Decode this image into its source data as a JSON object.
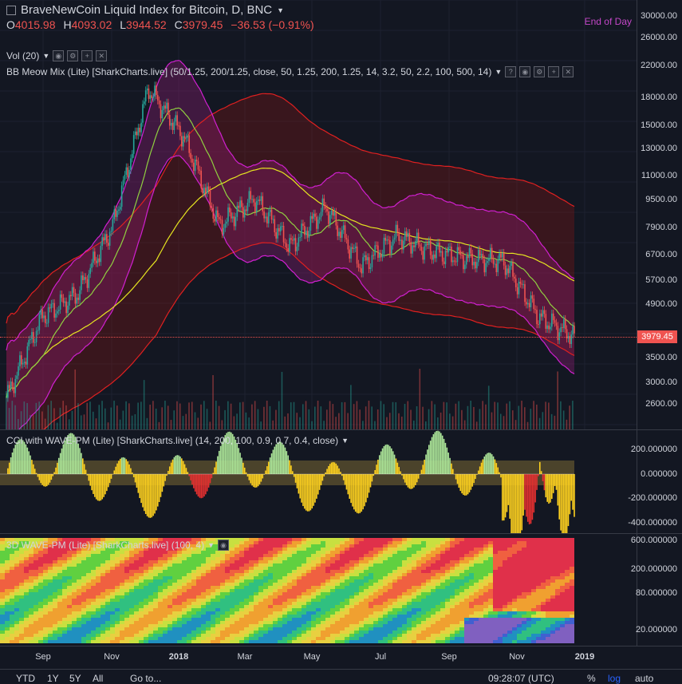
{
  "header": {
    "title": "BraveNewCoin Liquid Index for Bitcoin, D, BNC",
    "eod": "End of Day",
    "ohlc": [
      {
        "k": "O",
        "v": "4015.98"
      },
      {
        "k": "H",
        "v": "4093.02"
      },
      {
        "k": "L",
        "v": "3944.52"
      },
      {
        "k": "C",
        "v": "3979.45"
      }
    ],
    "change": "−36.53 (−0.91%)"
  },
  "indicators": {
    "vol": "Vol (20)",
    "bb": "BB Meow Mix (Lite) [SharkCharts.live] (50/1.25, 200/1.25, close, 50, 1.25, 200, 1.25, 14, 3.2, 50, 2.2, 100, 500, 14)",
    "cci": "CCI with WAVE-PM (Lite) [SharkCharts.live] (14, 200, 100, 0.9, 0.7, 0.4, close)",
    "wave": "3D WAVE-PM (Lite) [SharkCharts.live] (100, 4)"
  },
  "price_axis": [
    "30000.00",
    "26000.00",
    "22000.00",
    "18000.00",
    "15000.00",
    "13000.00",
    "11000.00",
    "9500.00",
    "7900.00",
    "6700.00",
    "5700.00",
    "4900.00",
    "3500.00",
    "3000.00",
    "2600.00"
  ],
  "price_tag": "3979.45",
  "cci_axis": [
    "200.000000",
    "0.000000",
    "-200.000000",
    "-400.000000"
  ],
  "wave_axis": [
    "600.000000",
    "200.000000",
    "80.000000",
    "20.000000"
  ],
  "x_axis": [
    {
      "label": "Sep",
      "bold": false
    },
    {
      "label": "Nov",
      "bold": false
    },
    {
      "label": "2018",
      "bold": true
    },
    {
      "label": "Mar",
      "bold": false
    },
    {
      "label": "May",
      "bold": false
    },
    {
      "label": "Jul",
      "bold": false
    },
    {
      "label": "Sep",
      "bold": false
    },
    {
      "label": "Nov",
      "bold": false
    },
    {
      "label": "2019",
      "bold": true
    }
  ],
  "bottom_bar": {
    "ranges": [
      "YTD",
      "1Y",
      "5Y",
      "All"
    ],
    "goto": "Go to...",
    "time": "09:28:07 (UTC)",
    "pct": "%",
    "log": "log",
    "auto": "auto"
  },
  "chart_data": {
    "type": "candlestick",
    "title": "BraveNewCoin Liquid Index for Bitcoin, D, BNC",
    "y_scale": "log",
    "x_range": [
      "2017-08",
      "2018-12"
    ],
    "close_path_approx": [
      {
        "date": "2017-08",
        "close": 2700
      },
      {
        "date": "2017-09",
        "close": 4500
      },
      {
        "date": "2017-10",
        "close": 5200
      },
      {
        "date": "2017-11",
        "close": 8000
      },
      {
        "date": "2017-12",
        "close": 19000
      },
      {
        "date": "2018-01",
        "close": 14000
      },
      {
        "date": "2018-02",
        "close": 8000
      },
      {
        "date": "2018-03",
        "close": 9500
      },
      {
        "date": "2018-04",
        "close": 7000
      },
      {
        "date": "2018-05",
        "close": 9000
      },
      {
        "date": "2018-06",
        "close": 6200
      },
      {
        "date": "2018-07",
        "close": 7500
      },
      {
        "date": "2018-08",
        "close": 6800
      },
      {
        "date": "2018-09",
        "close": 6500
      },
      {
        "date": "2018-10",
        "close": 6400
      },
      {
        "date": "2018-11",
        "close": 4500
      },
      {
        "date": "2018-12",
        "close": 3979.45
      }
    ],
    "last": {
      "open": 4015.98,
      "high": 4093.02,
      "low": 3944.52,
      "close": 3979.45
    }
  }
}
